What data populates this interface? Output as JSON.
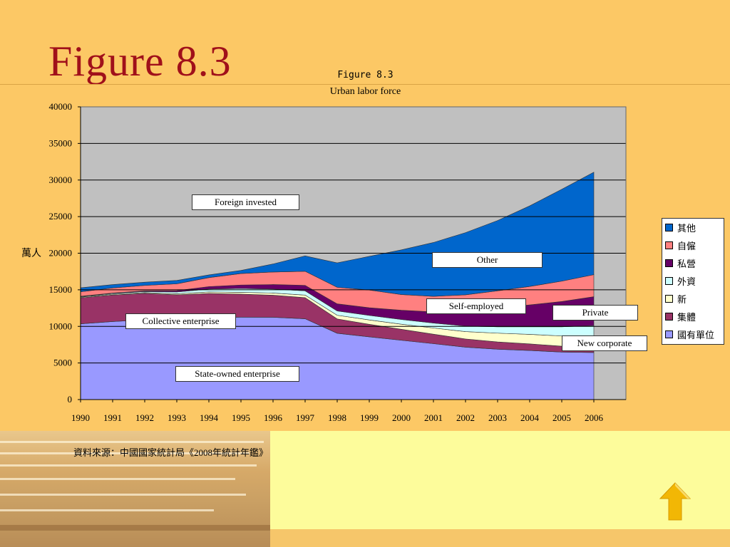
{
  "slide": {
    "title": "Figure 8.3",
    "source": "資料來源：中國國家統計局《2008年統計年鑑》"
  },
  "chart_data": {
    "type": "area",
    "stacked": true,
    "title": "Figure 8.3",
    "subtitle": "Urban labor force",
    "ylabel": "萬人",
    "xlabel": "",
    "ylim": [
      0,
      40000
    ],
    "yticks": [
      0,
      5000,
      10000,
      15000,
      20000,
      25000,
      30000,
      35000,
      40000
    ],
    "grid": true,
    "legend_position": "right",
    "categories": [
      "1990",
      "1991",
      "1992",
      "1993",
      "1994",
      "1995",
      "1996",
      "1997",
      "1998",
      "1999",
      "2000",
      "2001",
      "2002",
      "2003",
      "2004",
      "2005",
      "2006"
    ],
    "series": [
      {
        "name": "國有單位",
        "color": "#9999ff",
        "values": [
          10346,
          10664,
          10889,
          10920,
          11214,
          11261,
          11244,
          11044,
          9058,
          8572,
          8102,
          7640,
          7163,
          6876,
          6710,
          6488,
          6430
        ]
      },
      {
        "name": "集體",
        "color": "#993366",
        "values": [
          3549,
          3628,
          3621,
          3393,
          3285,
          3147,
          3016,
          2883,
          1963,
          1712,
          1499,
          1291,
          1122,
          1000,
          897,
          810,
          764
        ]
      },
      {
        "name": "新",
        "color": "#ffffcc",
        "values": [
          96,
          100,
          110,
          150,
          200,
          250,
          300,
          350,
          500,
          600,
          700,
          850,
          1000,
          1200,
          1300,
          1400,
          1500
        ]
      },
      {
        "name": "外資",
        "color": "#ccffff",
        "values": [
          66,
          96,
          138,
          236,
          406,
          513,
          540,
          581,
          587,
          612,
          642,
          671,
          758,
          863,
          1033,
          1245,
          1407
        ]
      },
      {
        "name": "私營",
        "color": "#660066",
        "values": [
          57,
          68,
          98,
          186,
          332,
          485,
          620,
          750,
          973,
          1053,
          1268,
          1527,
          1999,
          2545,
          2994,
          3458,
          3954
        ]
      },
      {
        "name": "自僱",
        "color": "#ff8080",
        "values": [
          614,
          692,
          740,
          930,
          1225,
          1560,
          1709,
          1919,
          2259,
          2414,
          2136,
          2131,
          2269,
          2377,
          2521,
          2778,
          3012
        ]
      },
      {
        "name": "其他",
        "color": "#0066cc",
        "values": [
          546,
          460,
          444,
          465,
          375,
          434,
          1101,
          2102,
          3336,
          4607,
          6113,
          7352,
          8498,
          9603,
          11010,
          12552,
          14003
        ]
      }
    ],
    "annotations": [
      "Foreign invested",
      "Collective enterprise",
      "State-owned enterprise",
      "Other",
      "Self-employed",
      "Private",
      "New corporate"
    ]
  },
  "colors": {
    "background": "#fcc865",
    "plot_background": "#c0c0c0",
    "title": "#a0101a",
    "arrow": "#f2b705"
  },
  "icons": {
    "nav": "up-arrow-icon"
  }
}
